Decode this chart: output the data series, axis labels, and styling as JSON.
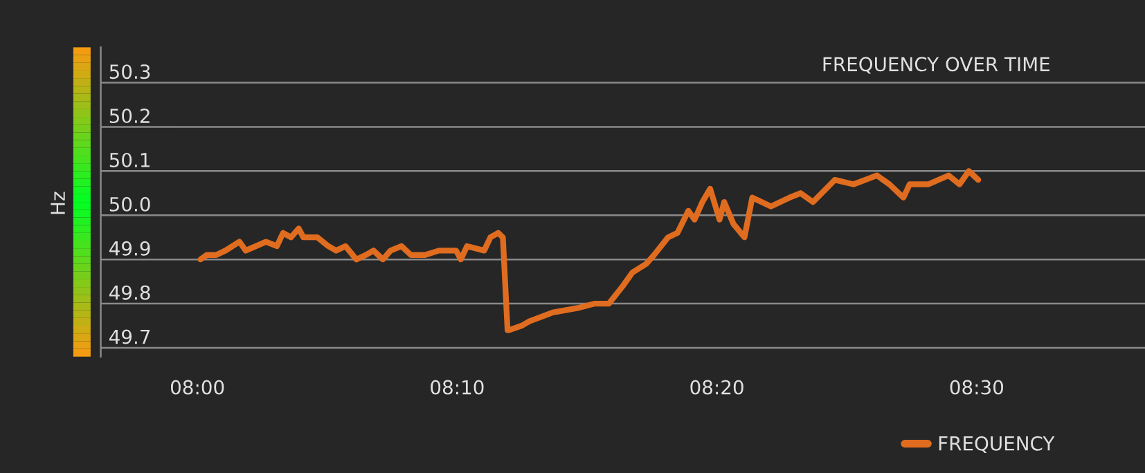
{
  "chart_data": {
    "type": "line",
    "title": "FREQUENCY OVER TIME",
    "ylabel": "Hz",
    "x": [
      8.002,
      8.006,
      8.012,
      8.018,
      8.027,
      8.031,
      8.044,
      8.051,
      8.055,
      8.06,
      8.065,
      8.068,
      8.077,
      8.084,
      8.089,
      8.095,
      8.102,
      8.108,
      8.113,
      8.119,
      8.124,
      8.131,
      8.137,
      8.146,
      8.155,
      8.166,
      8.169,
      8.173,
      8.184,
      8.188,
      8.193,
      8.196,
      8.199,
      8.2,
      8.208,
      8.213,
      8.228,
      8.244,
      8.255,
      8.264,
      8.273,
      8.279,
      8.288,
      8.293,
      8.302,
      8.308,
      8.315,
      8.319,
      8.324,
      8.329,
      8.335,
      8.338,
      8.344,
      8.351,
      8.356,
      8.368,
      8.38,
      8.387,
      8.395,
      8.409,
      8.421,
      8.436,
      8.444,
      8.453,
      8.457,
      8.469,
      8.482,
      8.489,
      8.495,
      8.501
    ],
    "series": [
      {
        "name": "FREQUENCY",
        "color": "#e06c1f",
        "values": [
          49.9,
          49.91,
          49.91,
          49.92,
          49.94,
          49.92,
          49.94,
          49.93,
          49.96,
          49.95,
          49.97,
          49.95,
          49.95,
          49.93,
          49.92,
          49.93,
          49.9,
          49.91,
          49.92,
          49.9,
          49.92,
          49.93,
          49.91,
          49.91,
          49.92,
          49.92,
          49.9,
          49.93,
          49.92,
          49.95,
          49.96,
          49.95,
          49.74,
          49.74,
          49.75,
          49.76,
          49.78,
          49.79,
          49.8,
          49.8,
          49.84,
          49.87,
          49.89,
          49.91,
          49.95,
          49.96,
          50.01,
          49.99,
          50.03,
          50.06,
          49.99,
          50.03,
          49.98,
          49.95,
          50.04,
          50.02,
          50.04,
          50.05,
          50.03,
          50.08,
          50.07,
          50.09,
          50.07,
          50.04,
          50.07,
          50.07,
          50.09,
          50.07,
          50.1,
          50.08
        ]
      }
    ],
    "xlim": [
      7.938,
      8.608
    ],
    "xticks": [
      {
        "value": 8.0,
        "label": "08:00"
      },
      {
        "value": 8.1666667,
        "label": "08:10"
      },
      {
        "value": 8.3333333,
        "label": "08:20"
      },
      {
        "value": 8.5,
        "label": "08:30"
      }
    ],
    "ylim": [
      49.68,
      50.38
    ],
    "yticks": [
      {
        "value": 49.7,
        "label": "49.7"
      },
      {
        "value": 49.8,
        "label": "49.8"
      },
      {
        "value": 49.9,
        "label": "49.9"
      },
      {
        "value": 50.0,
        "label": "50.0"
      },
      {
        "value": 50.1,
        "label": "50.1"
      },
      {
        "value": 50.2,
        "label": "50.2"
      },
      {
        "value": 50.3,
        "label": "50.3"
      }
    ],
    "grid": "y",
    "legend": "bottom right",
    "marker": "none",
    "line_style": "solid"
  }
}
